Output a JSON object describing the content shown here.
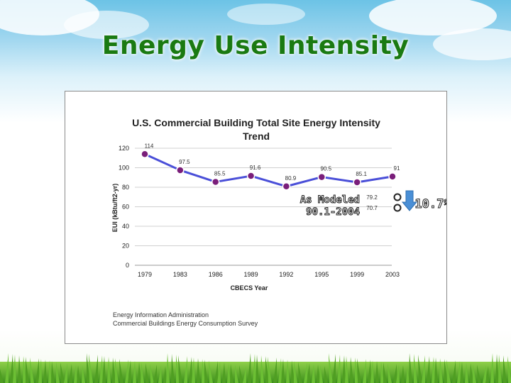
{
  "slide": {
    "title": "Energy Use Intensity"
  },
  "chart_data": {
    "type": "line",
    "title": "U.S. Commercial Building Total Site Energy Intensity Trend",
    "title_lines": [
      "U.S. Commercial Building Total Site Energy Intensity",
      "Trend"
    ],
    "xlabel": "CBECS Year",
    "ylabel": "EUI (kBtu/ft2-yr)",
    "categories": [
      "1979",
      "1983",
      "1986",
      "1989",
      "1992",
      "1995",
      "1999",
      "2003"
    ],
    "series": [
      {
        "values": [
          114,
          97.5,
          85.5,
          91.6,
          80.9,
          90.5,
          85.1,
          91
        ],
        "color": "#4a4fd8"
      }
    ],
    "data_labels": [
      "114",
      "97.5",
      "85.5",
      "91.6",
      "80.9",
      "90.5",
      "85.1",
      "91"
    ],
    "ylim": [
      0,
      120
    ],
    "yticks": [
      "0",
      "20",
      "40",
      "60",
      "80",
      "100",
      "120"
    ],
    "grid": true,
    "legend": "none",
    "annotation": {
      "label_lines": [
        "As Modeled",
        "90.1-2004"
      ],
      "values": [
        79.2,
        70.7
      ],
      "value_labels": [
        "79.2",
        "70.7"
      ],
      "reduction_label": "10.7%",
      "arrow_color": "#4a8fd6"
    },
    "source_lines": [
      "Energy Information Administration",
      "Commercial Buildings Energy Consumption Survey"
    ],
    "marker_fill": "#7a1e7a"
  }
}
